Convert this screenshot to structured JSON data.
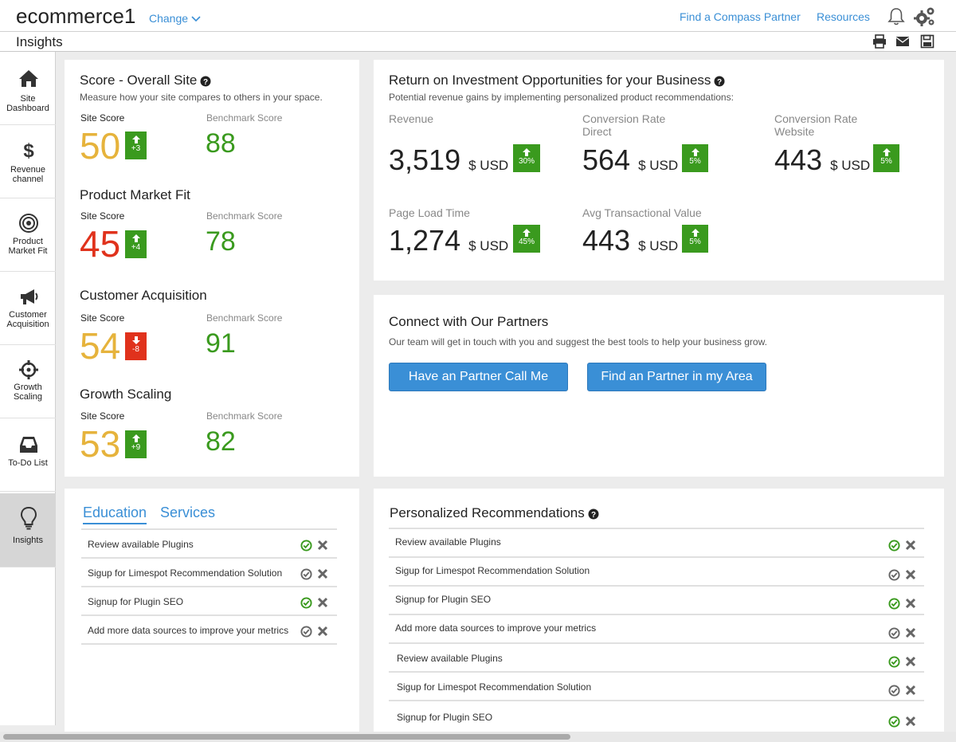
{
  "header": {
    "brand": "ecommerce1",
    "change_label": "Change",
    "find_partner": "Find a Compass Partner",
    "resources": "Resources"
  },
  "subheader": {
    "title": "Insights"
  },
  "sidebar": {
    "items": [
      {
        "label": "Site Dashboard",
        "icon": "home-icon"
      },
      {
        "label": "Revenue channel",
        "icon": "dollar-icon"
      },
      {
        "label": "Product Market Fit",
        "icon": "target-icon"
      },
      {
        "label": "Customer Acquisition",
        "icon": "megaphone-icon"
      },
      {
        "label": "Growth Scaling",
        "icon": "crosshair-icon"
      },
      {
        "label": "To-Do List",
        "icon": "inbox-icon"
      },
      {
        "label": "Insights",
        "icon": "lightbulb-icon"
      }
    ]
  },
  "scores": {
    "title": "Score - Overall Site",
    "subtitle": "Measure how your site compares to others in your space.",
    "site_score_label": "Site Score",
    "benchmark_label": "Benchmark Score",
    "sections": [
      {
        "title": "",
        "score": "50",
        "change": "+3",
        "direction": "up",
        "benchmark": "88",
        "score_color": "#e6b33c"
      },
      {
        "title": "Product Market Fit",
        "score": "45",
        "change": "+4",
        "direction": "up",
        "benchmark": "78",
        "score_color": "#e0321c"
      },
      {
        "title": "Customer Acquisition",
        "score": "54",
        "change": "-8",
        "direction": "down",
        "benchmark": "91",
        "score_color": "#e6b33c"
      },
      {
        "title": "Growth Scaling",
        "score": "53",
        "change": "+9",
        "direction": "up",
        "benchmark": "82",
        "score_color": "#e6b33c"
      }
    ]
  },
  "roi": {
    "title": "Return on Investment Opportunities for your Business",
    "subtitle": "Potential revenue gains by implementing personalized product recommendations:",
    "unit": "$ USD",
    "metrics": [
      {
        "label1": "Revenue",
        "label2": "",
        "value": "3,519",
        "change": "30%"
      },
      {
        "label1": "Conversion Rate",
        "label2": "Direct",
        "value": "564",
        "change": "5%"
      },
      {
        "label1": "Conversion Rate",
        "label2": "Website",
        "value": "443",
        "change": "5%"
      },
      {
        "label1": "Page  Load Time",
        "label2": "",
        "value": "1,274",
        "change": "45%"
      },
      {
        "label1": "Avg Transactional Value",
        "label2": "",
        "value": "443",
        "change": "5%"
      }
    ]
  },
  "partners": {
    "title": "Connect with Our Partners",
    "subtitle": "Our team will get in touch with you and suggest the best tools to help your business grow.",
    "call_button": "Have an Partner Call Me",
    "find_button": "Find an Partner in my Area"
  },
  "education": {
    "tabs": [
      "Education",
      "Services"
    ],
    "items": [
      {
        "text": "Review available Plugins",
        "done": true
      },
      {
        "text": "Sigup for Limespot Recommendation Solution",
        "done": false
      },
      {
        "text": "Signup for Plugin SEO",
        "done": true
      },
      {
        "text": "Add more data sources to improve your metrics",
        "done": false
      }
    ]
  },
  "recommendations": {
    "title": "Personalized Recommendations",
    "items": [
      {
        "text": "Review available Plugins",
        "done": true
      },
      {
        "text": "Sigup for Limespot Recommendation Solution",
        "done": false
      },
      {
        "text": "Signup for Plugin SEO",
        "done": true
      },
      {
        "text": "Add more data sources to improve your metrics",
        "done": false
      },
      {
        "text": "Review available Plugins",
        "done": true
      },
      {
        "text": "Sigup for Limespot Recommendation Solution",
        "done": false
      },
      {
        "text": "Signup for Plugin SEO",
        "done": true
      }
    ]
  },
  "colors": {
    "accent": "#3a8fd6",
    "positive": "#3a9a1e",
    "negative": "#e0321c",
    "warning": "#e6b33c"
  }
}
